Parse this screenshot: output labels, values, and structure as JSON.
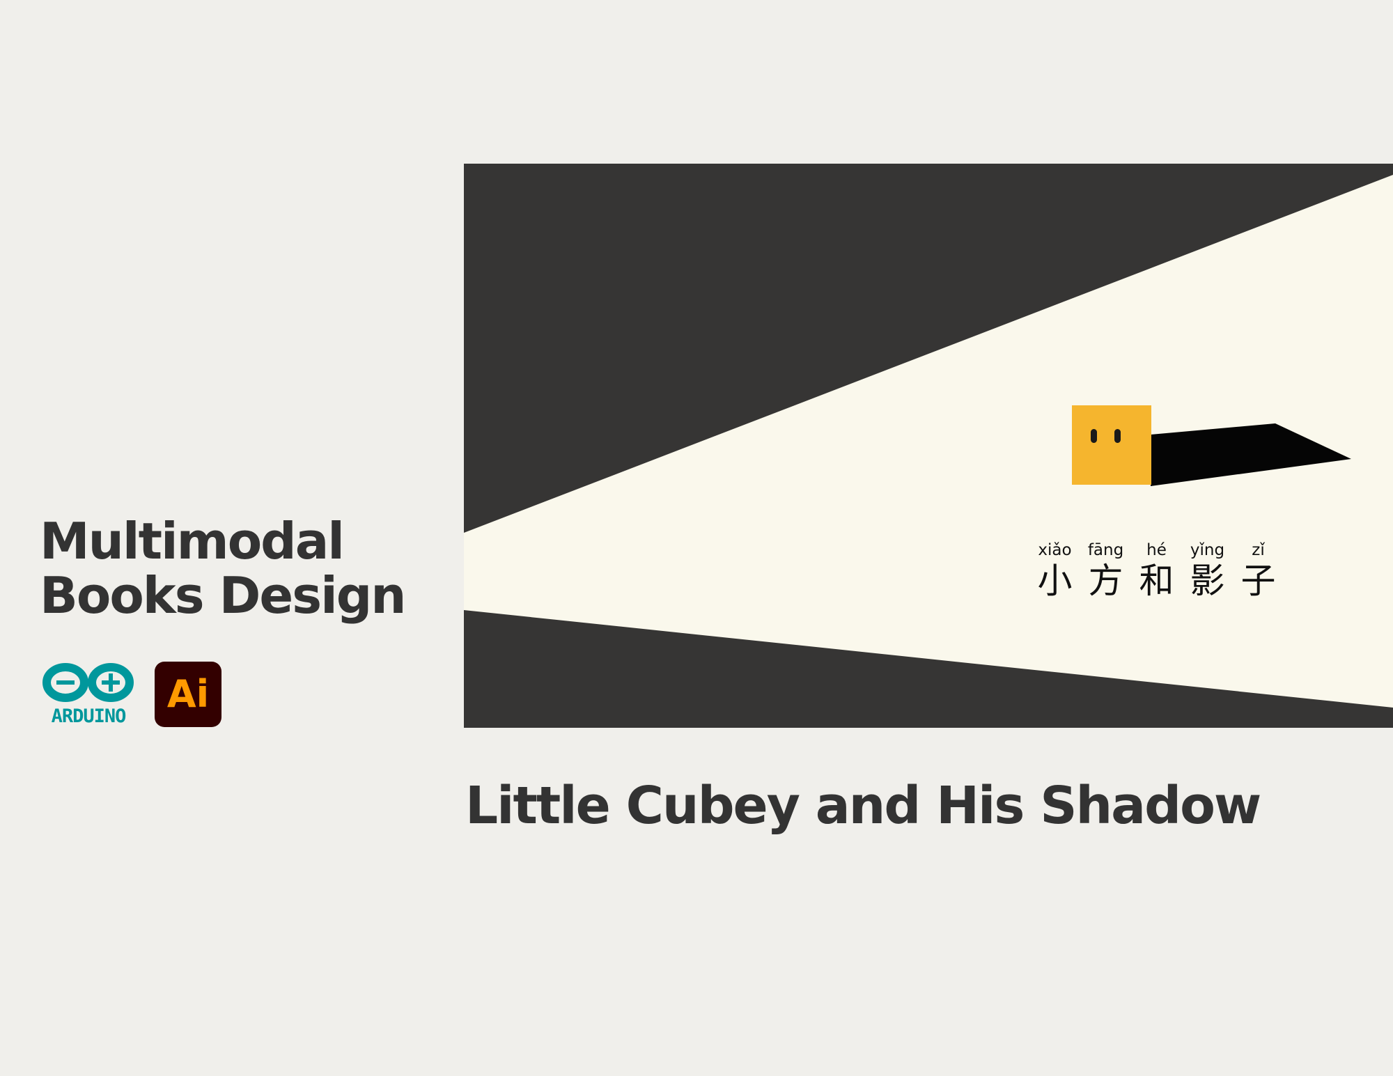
{
  "project": {
    "title_line1": "Multimodal",
    "title_line2": "Books Design"
  },
  "tools": {
    "arduino_label": "ARDUINO",
    "ai_label": "Ai"
  },
  "cover": {
    "characters": [
      {
        "pinyin": "xiǎo",
        "hanzi": "小"
      },
      {
        "pinyin": "fāng",
        "hanzi": "方"
      },
      {
        "pinyin": "hé",
        "hanzi": "和"
      },
      {
        "pinyin": "yǐng",
        "hanzi": "影"
      },
      {
        "pinyin": "zǐ",
        "hanzi": "子"
      }
    ]
  },
  "book": {
    "title": "Little Cubey and His Shadow"
  },
  "colors": {
    "background": "#f0efeb",
    "cover_dark": "#363534",
    "cover_light": "#faf8ec",
    "cube": "#f5b52e",
    "arduino": "#00979c",
    "ai_background": "#330000",
    "ai_text": "#ff9a00",
    "text": "#333333"
  }
}
